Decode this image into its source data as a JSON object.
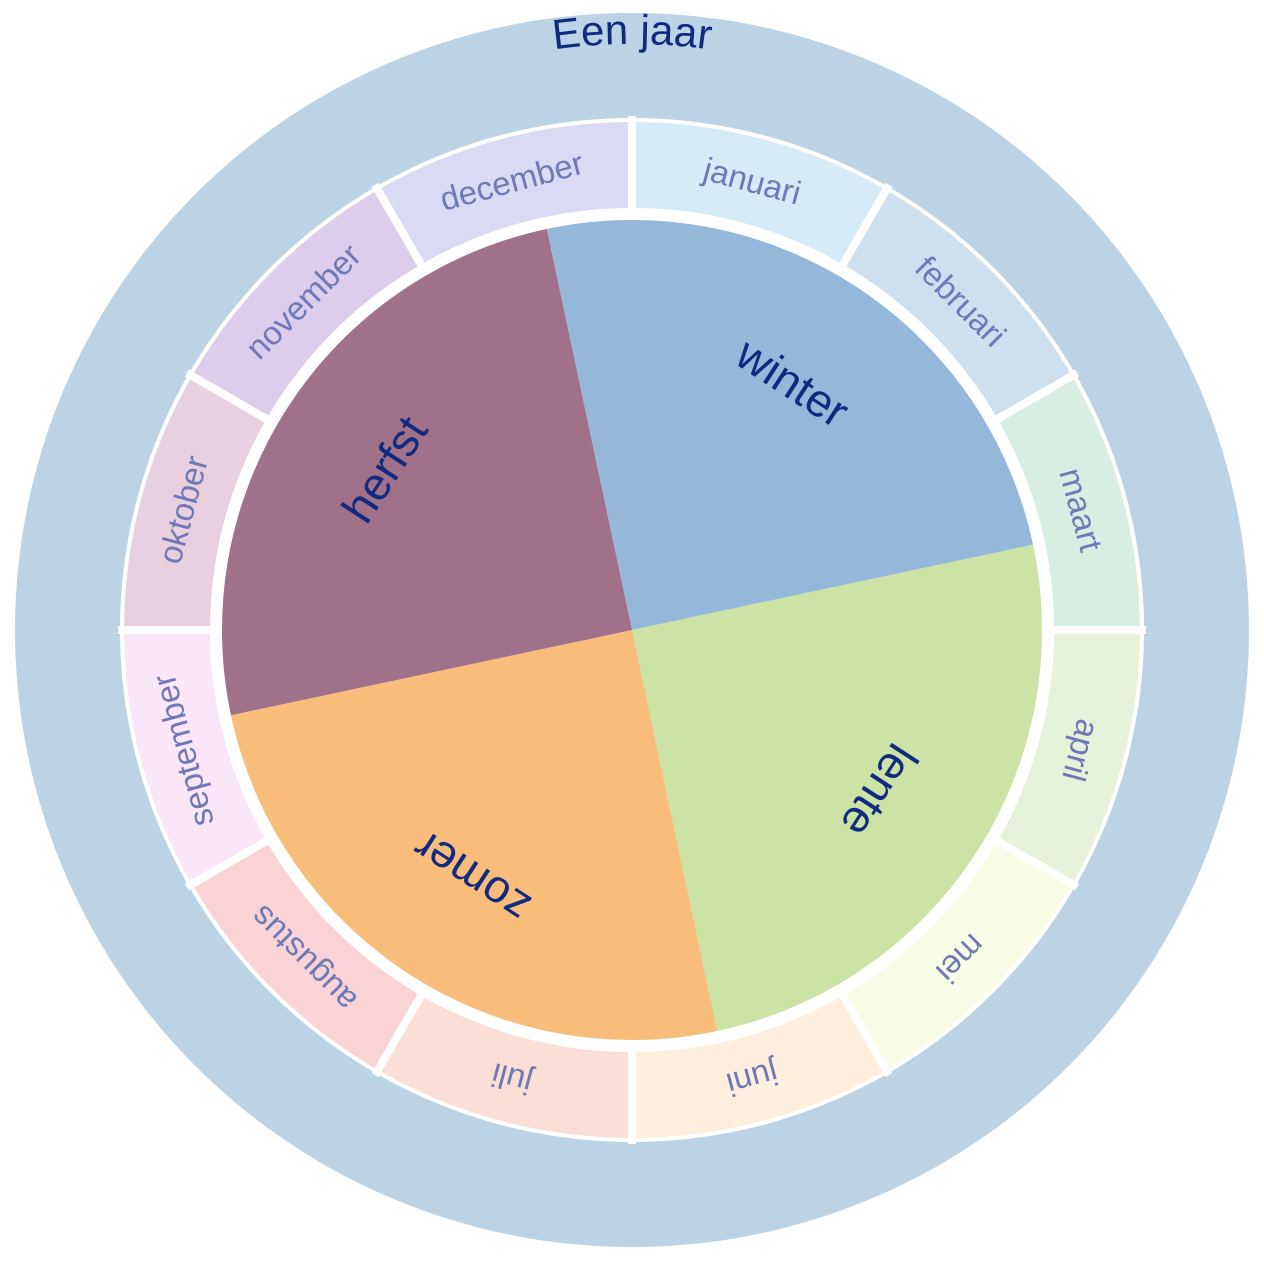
{
  "title": "Een jaar",
  "colors": {
    "outer_ring": "#bcd3e6",
    "title_text": "#102a80",
    "season_text": "#102a80",
    "month_text": "#6f79b5",
    "separator": "#ffffff"
  },
  "seasons": [
    {
      "label": "winter",
      "color": "#95b7d9"
    },
    {
      "label": "lente",
      "color": "#cbe3a4"
    },
    {
      "label": "zomer",
      "color": "#f8bd7b"
    },
    {
      "label": "herfst",
      "color": "#a07189"
    }
  ],
  "months": [
    {
      "label": "januari",
      "color": "#d5ebf7"
    },
    {
      "label": "februari",
      "color": "#cde0f0"
    },
    {
      "label": "maart",
      "color": "#d6efe2"
    },
    {
      "label": "april",
      "color": "#e6f2d9"
    },
    {
      "label": "mei",
      "color": "#f9fde5"
    },
    {
      "label": "juni",
      "color": "#fdeedd"
    },
    {
      "label": "juli",
      "color": "#fbdfd6"
    },
    {
      "label": "augustus",
      "color": "#f9d3d6"
    },
    {
      "label": "september",
      "color": "#f9e6f9"
    },
    {
      "label": "oktober",
      "color": "#e8d0e0"
    },
    {
      "label": "november",
      "color": "#dccdec"
    },
    {
      "label": "december",
      "color": "#dadaf4"
    }
  ]
}
